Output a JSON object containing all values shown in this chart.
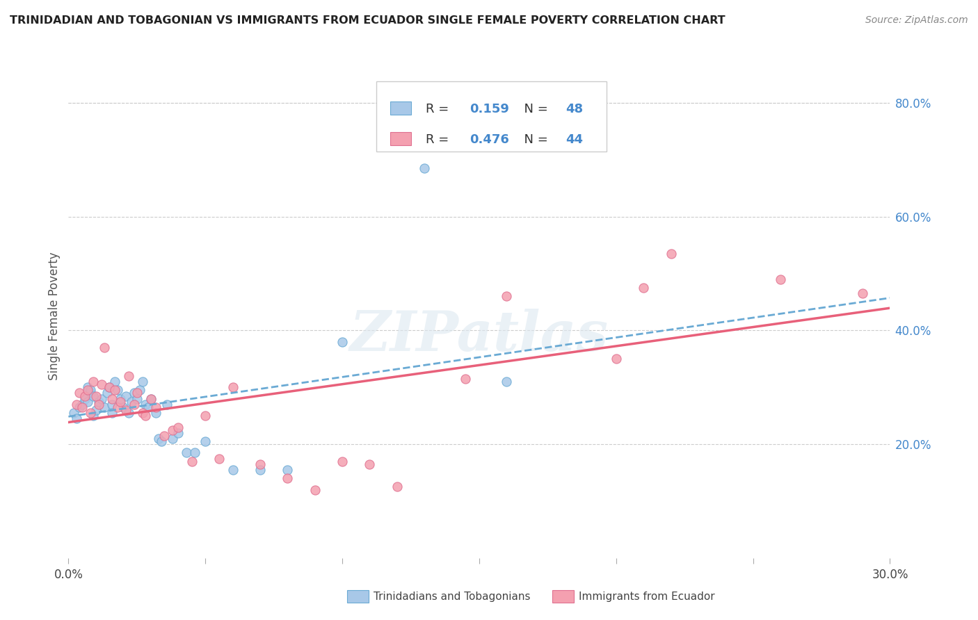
{
  "title": "TRINIDADIAN AND TOBAGONIAN VS IMMIGRANTS FROM ECUADOR SINGLE FEMALE POVERTY CORRELATION CHART",
  "source": "Source: ZipAtlas.com",
  "ylabel": "Single Female Poverty",
  "legend1_label": "Trinidadians and Tobagonians",
  "legend2_label": "Immigrants from Ecuador",
  "R1": 0.159,
  "N1": 48,
  "R2": 0.476,
  "N2": 44,
  "color_blue": "#a8c8e8",
  "color_blue_edge": "#6aaad4",
  "color_pink": "#f4a0b0",
  "color_pink_edge": "#e07090",
  "color_line_blue": "#6aaad4",
  "color_line_pink": "#e8607a",
  "watermark": "ZIPatlas",
  "xmin": 0.0,
  "xmax": 0.3,
  "ymin": 0.0,
  "ymax": 0.85,
  "blue_x": [
    0.002,
    0.003,
    0.004,
    0.005,
    0.006,
    0.007,
    0.007,
    0.008,
    0.008,
    0.009,
    0.009,
    0.01,
    0.011,
    0.012,
    0.013,
    0.014,
    0.015,
    0.016,
    0.016,
    0.017,
    0.018,
    0.019,
    0.02,
    0.021,
    0.022,
    0.023,
    0.024,
    0.025,
    0.026,
    0.027,
    0.028,
    0.029,
    0.03,
    0.032,
    0.033,
    0.034,
    0.036,
    0.038,
    0.04,
    0.043,
    0.046,
    0.05,
    0.06,
    0.07,
    0.08,
    0.1,
    0.13,
    0.16
  ],
  "blue_y": [
    0.255,
    0.245,
    0.265,
    0.27,
    0.28,
    0.3,
    0.275,
    0.29,
    0.295,
    0.285,
    0.25,
    0.26,
    0.275,
    0.28,
    0.265,
    0.29,
    0.3,
    0.27,
    0.255,
    0.31,
    0.295,
    0.28,
    0.265,
    0.285,
    0.255,
    0.275,
    0.29,
    0.28,
    0.295,
    0.31,
    0.27,
    0.265,
    0.28,
    0.255,
    0.21,
    0.205,
    0.27,
    0.21,
    0.22,
    0.185,
    0.185,
    0.205,
    0.155,
    0.155,
    0.155,
    0.38,
    0.685,
    0.31
  ],
  "pink_x": [
    0.003,
    0.004,
    0.005,
    0.006,
    0.007,
    0.008,
    0.009,
    0.01,
    0.011,
    0.012,
    0.013,
    0.015,
    0.016,
    0.017,
    0.018,
    0.019,
    0.021,
    0.022,
    0.024,
    0.025,
    0.027,
    0.028,
    0.03,
    0.032,
    0.035,
    0.038,
    0.04,
    0.045,
    0.05,
    0.055,
    0.06,
    0.07,
    0.08,
    0.09,
    0.1,
    0.11,
    0.12,
    0.145,
    0.16,
    0.2,
    0.21,
    0.22,
    0.26,
    0.29
  ],
  "pink_y": [
    0.27,
    0.29,
    0.265,
    0.285,
    0.295,
    0.255,
    0.31,
    0.285,
    0.27,
    0.305,
    0.37,
    0.3,
    0.28,
    0.295,
    0.265,
    0.275,
    0.26,
    0.32,
    0.27,
    0.29,
    0.255,
    0.25,
    0.28,
    0.265,
    0.215,
    0.225,
    0.23,
    0.17,
    0.25,
    0.175,
    0.3,
    0.165,
    0.14,
    0.12,
    0.17,
    0.165,
    0.125,
    0.315,
    0.46,
    0.35,
    0.475,
    0.535,
    0.49,
    0.465
  ]
}
